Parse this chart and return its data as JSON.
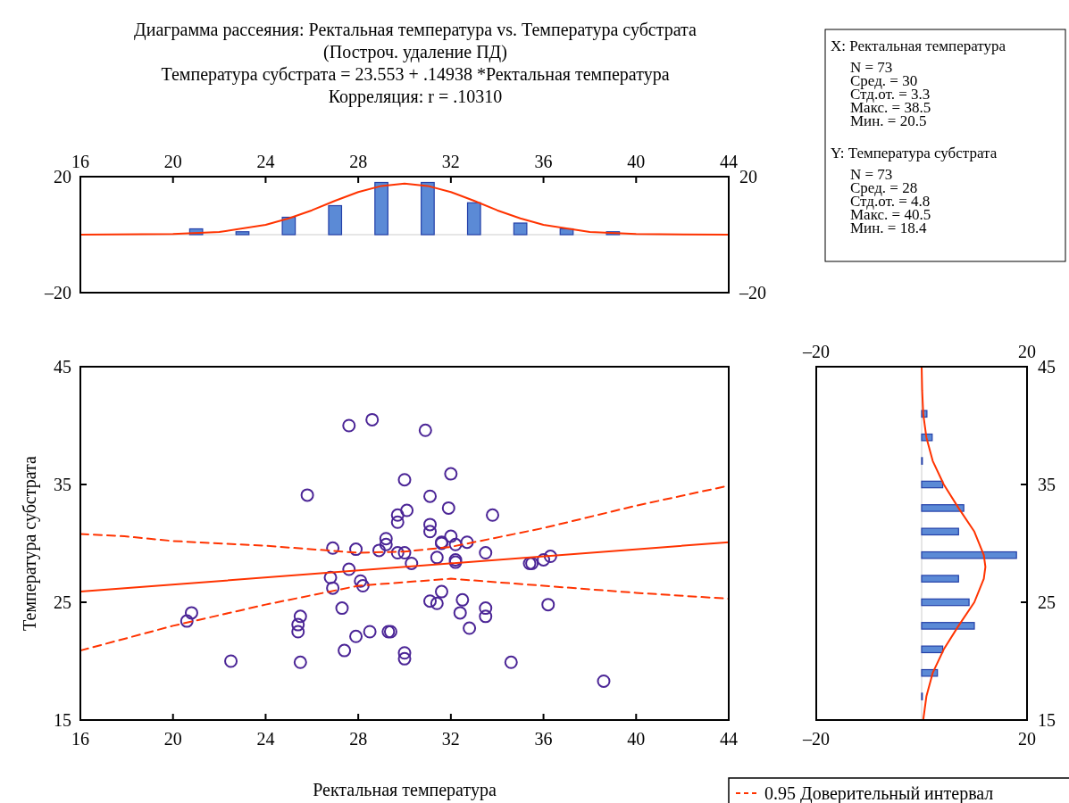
{
  "chart_data": [
    {
      "type": "other",
      "title": "Диаграмма рассеяния: Ректальная температура vs. Температура субстрата",
      "subtitle": "(Построч. удаление ПД)",
      "annotations": [
        "Температура субстрата = 23.553 + .14938 *Ректальная температура",
        "Корреляция: r = .10310"
      ]
    },
    {
      "type": "scatter",
      "xlabel": "Ректальная температура",
      "ylabel": "Температура субстрата",
      "xlim": [
        16,
        44
      ],
      "xticks": [
        16,
        20,
        24,
        28,
        32,
        36,
        40,
        44
      ],
      "ylim": [
        15,
        45
      ],
      "yticks": [
        15,
        25,
        35,
        45
      ],
      "grid": false,
      "legend": "bottom right",
      "series": [
        {
          "type": "scatter",
          "marker": "circle",
          "color": "#4b2596",
          "x": [
            27.6,
            28.6,
            30.0,
            25.8,
            30.1,
            29.7,
            29.7,
            29.2,
            29.2,
            26.9,
            27.9,
            28.9,
            29.7,
            30.0,
            30.3,
            27.6,
            26.8,
            28.1,
            28.2,
            26.9,
            27.3,
            20.8,
            20.6,
            25.5,
            25.4,
            25.4,
            28.5,
            29.3,
            29.4,
            27.9,
            27.4,
            30.0,
            30.0,
            22.5,
            25.5,
            30.9,
            32.0,
            31.1,
            31.9,
            33.8,
            31.1,
            31.1,
            31.6,
            31.6,
            32.0,
            32.2,
            32.7,
            31.4,
            32.2,
            32.2,
            33.5,
            35.4,
            35.5,
            36.0,
            36.3,
            31.6,
            31.1,
            31.4,
            32.5,
            33.5,
            33.5,
            32.4,
            32.8,
            36.2,
            34.6,
            38.6
          ],
          "values": [
            40.0,
            40.5,
            35.4,
            34.1,
            32.8,
            32.4,
            31.8,
            30.4,
            29.9,
            29.6,
            29.5,
            29.4,
            29.2,
            29.2,
            28.3,
            27.8,
            27.1,
            26.8,
            26.4,
            26.2,
            24.5,
            24.1,
            23.4,
            23.8,
            23.1,
            22.5,
            22.5,
            22.5,
            22.5,
            22.1,
            20.9,
            20.7,
            20.2,
            20.0,
            19.9,
            39.6,
            35.9,
            34.0,
            33.0,
            32.4,
            31.6,
            31.0,
            30.1,
            30.0,
            30.6,
            29.9,
            30.1,
            28.8,
            28.6,
            28.4,
            29.2,
            28.3,
            28.3,
            28.6,
            28.9,
            25.9,
            25.1,
            24.9,
            25.2,
            24.5,
            23.8,
            24.1,
            22.8,
            24.8,
            19.9,
            18.3
          ]
        },
        {
          "type": "line",
          "color": "#ff3300",
          "line_style": "solid",
          "x": [
            16,
            44
          ],
          "values": [
            25.9,
            30.1
          ]
        },
        {
          "type": "line",
          "name": "0.95 Доверительный интервал",
          "color": "#ff3300",
          "line_style": "dashed",
          "x": [
            16,
            17.9,
            20,
            24,
            28,
            30,
            32,
            36,
            40,
            44
          ],
          "values": [
            30.8,
            30.6,
            30.2,
            29.8,
            29.2,
            29.3,
            29.7,
            31.3,
            33.2,
            34.9
          ]
        },
        {
          "type": "line",
          "color": "#ff3300",
          "line_style": "dashed",
          "x": [
            16,
            20,
            24,
            28,
            32,
            36,
            40,
            44
          ],
          "values": [
            20.9,
            23.0,
            24.8,
            26.4,
            27.0,
            26.4,
            25.8,
            25.3
          ]
        }
      ]
    },
    {
      "type": "histogram",
      "bins": [
        20,
        22,
        24,
        26,
        28,
        30,
        32,
        34,
        36,
        38,
        40
      ],
      "values": [
        2,
        1,
        6,
        10,
        18,
        18,
        11,
        4,
        2,
        1
      ],
      "color": "#5b8ad6",
      "xlim": [
        16,
        44
      ],
      "xticks": [
        16,
        20,
        24,
        28,
        32,
        36,
        40,
        44
      ],
      "ylim": [
        -20,
        20
      ],
      "yticks": [
        {
          "value": -20,
          "label": "–20"
        },
        20
      ],
      "y2lim": [
        -20,
        20
      ],
      "y2ticks": [
        {
          "value": -20,
          "label": "–20"
        },
        20
      ],
      "series": [
        {
          "type": "line",
          "color": "#ff3300",
          "x": [
            16,
            20,
            22,
            24,
            25,
            26,
            27,
            28,
            29,
            30,
            31,
            32,
            33,
            34,
            35,
            36,
            38,
            40,
            44
          ],
          "values": [
            0,
            0.2,
            0.9,
            3.4,
            5.6,
            8.4,
            11.7,
            14.7,
            16.8,
            17.6,
            16.8,
            14.7,
            11.7,
            8.4,
            5.6,
            3.4,
            0.9,
            0.2,
            0
          ]
        }
      ]
    },
    {
      "type": "histogram",
      "orientation": "horizontal",
      "bins": [
        16,
        18,
        20,
        22,
        24,
        26,
        28,
        30,
        32,
        34,
        36,
        38,
        40,
        42
      ],
      "values": [
        0,
        3,
        4,
        10,
        9,
        7,
        18,
        7,
        8,
        4,
        0,
        2,
        1
      ],
      "color": "#5b8ad6",
      "xlim": [
        -20,
        20
      ],
      "xticks": [
        {
          "value": -20,
          "label": "–20"
        },
        20
      ],
      "x2lim": [
        -20,
        20
      ],
      "x2ticks": [
        {
          "value": -20,
          "label": "–20"
        },
        20
      ],
      "ylim": [
        15,
        45
      ],
      "yticks": [
        15,
        25,
        35,
        45
      ],
      "series": [
        {
          "type": "line",
          "color": "#ff3300",
          "x": [
            15,
            17,
            19,
            21,
            23,
            25,
            27,
            28,
            29,
            31,
            33,
            35,
            37,
            39,
            41,
            43,
            45
          ],
          "values": [
            0.3,
            0.9,
            2.1,
            4.2,
            7.0,
            10.0,
            11.8,
            12.1,
            11.8,
            10.0,
            7.0,
            4.2,
            2.1,
            0.9,
            0.3,
            0.1,
            0
          ]
        }
      ]
    },
    {
      "type": "other",
      "annotations": [
        "X: Ректальная температура",
        "N = 73",
        "Сред. = 30",
        "Стд.от. = 3.3",
        "Макс. = 38.5",
        "Мин. = 20.5",
        "Y: Температура субстрата",
        "N = 73",
        "Сред. = 28",
        "Стд.от. = 4.8",
        "Макс. = 40.5",
        "Мин. = 18.4"
      ]
    }
  ]
}
